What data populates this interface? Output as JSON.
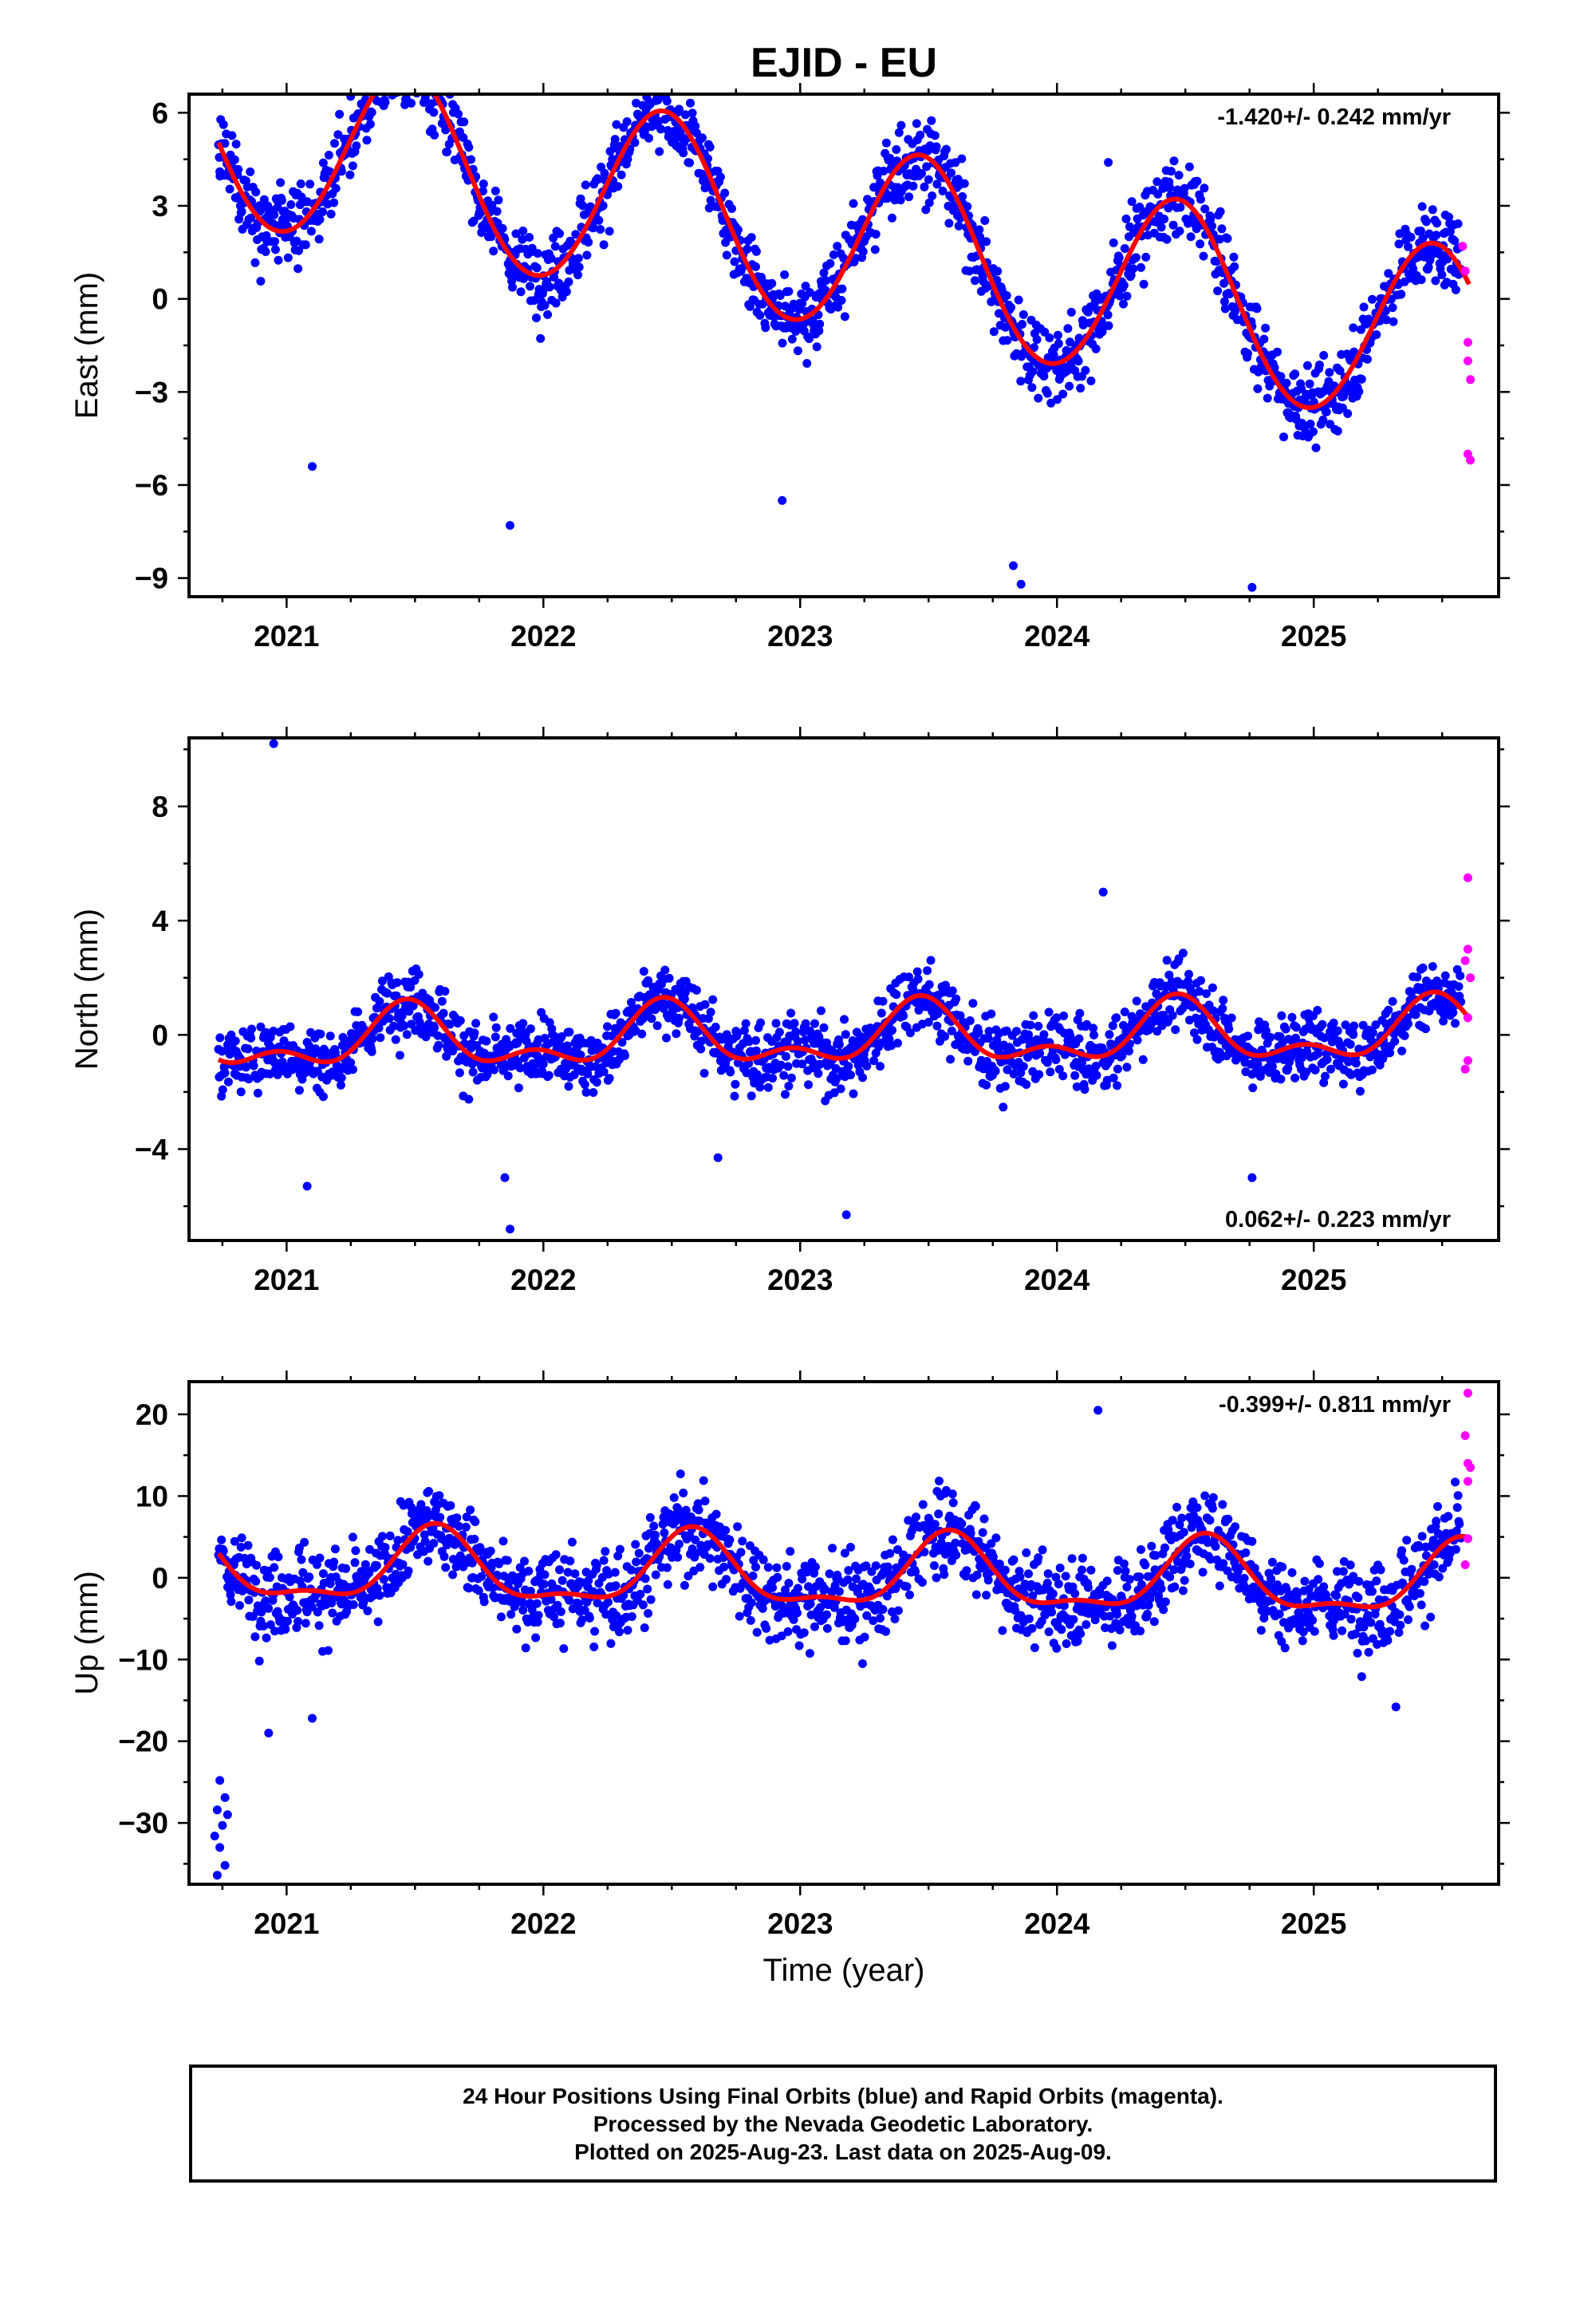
{
  "title": "EJID - EU",
  "xlabel": "Time (year)",
  "colors": {
    "final": "#0000ff",
    "rapid": "#ff00ff",
    "model": "#ff0000"
  },
  "footer": {
    "line1": "24 Hour Positions Using Final Orbits (blue) and Rapid Orbits (magenta).",
    "line2": "Processed by the Nevada Geodetic Laboratory.",
    "line3": "Plotted on 2025-Aug-23. Last data on 2025-Aug-09."
  },
  "chart_data": [
    {
      "type": "scatter",
      "panel": "east",
      "ylabel": "East (mm)",
      "rate": "-1.420+/- 0.242 mm/yr",
      "rate_position": "top-right",
      "xlim": [
        2020.62,
        2025.72
      ],
      "ylim": [
        -9.6,
        6.6
      ],
      "xticks": [
        "2021",
        "2022",
        "2023",
        "2024",
        "2025"
      ],
      "yticks": [
        "6",
        "3",
        "0",
        "−3",
        "−6",
        "−9"
      ],
      "yticks_values": [
        6,
        3,
        0,
        -3,
        -6,
        -9
      ],
      "model": {
        "offset": 2.2,
        "trend": -1.42,
        "amp": 3.0,
        "peak": 2021.47,
        "amp2": 0.1
      },
      "noise": 0.9,
      "outliers": [
        [
          2020.74,
          4.1
        ],
        [
          2021.1,
          -5.4
        ],
        [
          2021.87,
          -7.3
        ],
        [
          2022.93,
          -6.5
        ],
        [
          2023.83,
          -8.6
        ],
        [
          2023.86,
          -9.2
        ],
        [
          2024.76,
          -9.3
        ],
        [
          2024.2,
          4.4
        ]
      ],
      "rapid": [
        [
          2025.58,
          1.7
        ],
        [
          2025.59,
          0.9
        ],
        [
          2025.6,
          -1.4
        ],
        [
          2025.6,
          -2.0
        ],
        [
          2025.61,
          -2.6
        ],
        [
          2025.6,
          -5.0
        ],
        [
          2025.61,
          -5.2
        ]
      ]
    },
    {
      "type": "scatter",
      "panel": "north",
      "ylabel": "North (mm)",
      "rate": "0.062+/- 0.223 mm/yr",
      "rate_position": "bottom-right",
      "xlim": [
        2020.62,
        2025.72
      ],
      "ylim": [
        -7.2,
        10.4
      ],
      "xticks": [
        "2021",
        "2022",
        "2023",
        "2024",
        "2025"
      ],
      "yticks": [
        "8",
        "4",
        "0",
        "−4"
      ],
      "yticks_values": [
        8,
        4,
        0,
        -4
      ],
      "model": {
        "offset": -0.1,
        "trend": 0.062,
        "amp": 0.9,
        "peak": 2021.47,
        "amp2": 0.55
      },
      "noise": 0.85,
      "outliers": [
        [
          2020.95,
          10.2
        ],
        [
          2021.08,
          -5.3
        ],
        [
          2021.87,
          -6.8
        ],
        [
          2021.85,
          -5.0
        ],
        [
          2022.68,
          -4.3
        ],
        [
          2023.18,
          -6.3
        ],
        [
          2024.18,
          5.0
        ],
        [
          2024.76,
          -5.0
        ]
      ],
      "rapid": [
        [
          2025.6,
          5.5
        ],
        [
          2025.6,
          3.0
        ],
        [
          2025.59,
          2.6
        ],
        [
          2025.61,
          2.0
        ],
        [
          2025.6,
          0.6
        ],
        [
          2025.6,
          -0.9
        ],
        [
          2025.59,
          -1.2
        ]
      ]
    },
    {
      "type": "scatter",
      "panel": "up",
      "ylabel": "Up (mm)",
      "rate": "-0.399+/- 0.811 mm/yr",
      "rate_position": "top-right",
      "xlim": [
        2020.62,
        2025.72
      ],
      "ylim": [
        -37.5,
        24
      ],
      "xticks": [
        "2021",
        "2022",
        "2023",
        "2024",
        "2025"
      ],
      "yticks": [
        "20",
        "10",
        "0",
        "−10",
        "−20",
        "−30"
      ],
      "yticks_values": [
        20,
        10,
        0,
        -10,
        -20,
        -30
      ],
      "model": {
        "offset": 0.3,
        "trend": -0.399,
        "amp": 4.2,
        "peak": 2021.58,
        "amp2": 1.6
      },
      "noise": 3.8,
      "outliers": [
        [
          2020.74,
          -24.8
        ],
        [
          2020.76,
          -26.9
        ],
        [
          2020.73,
          -28.4
        ],
        [
          2020.75,
          -30.3
        ],
        [
          2020.72,
          -31.6
        ],
        [
          2020.74,
          -33.0
        ],
        [
          2020.76,
          -35.2
        ],
        [
          2020.73,
          -36.4
        ],
        [
          2020.77,
          -29.0
        ],
        [
          2020.93,
          -19.0
        ],
        [
          2021.1,
          -17.2
        ],
        [
          2024.16,
          20.5
        ],
        [
          2025.32,
          -15.8
        ]
      ],
      "rapid": [
        [
          2025.6,
          22.6
        ],
        [
          2025.59,
          17.4
        ],
        [
          2025.6,
          14.0
        ],
        [
          2025.61,
          13.5
        ],
        [
          2025.6,
          11.8
        ],
        [
          2025.6,
          4.8
        ],
        [
          2025.59,
          1.6
        ]
      ]
    }
  ]
}
